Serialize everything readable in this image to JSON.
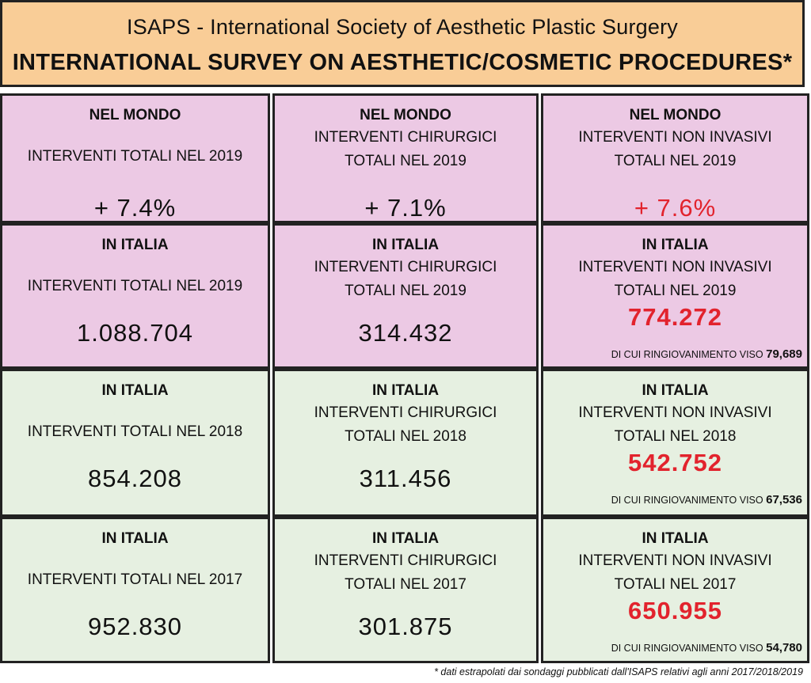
{
  "header": {
    "title": "ISAPS - International Society of Aesthetic Plastic Surgery",
    "subtitle": "INTERNATIONAL SURVEY ON AESTHETIC/COSMETIC PROCEDURES*"
  },
  "rows": [
    {
      "cells": [
        {
          "head": "NEL MONDO",
          "sub1": "INTERVENTI TOTALI NEL 2019",
          "value": "+ 7.4%"
        },
        {
          "head": "NEL MONDO",
          "sub1": "INTERVENTI CHIRURGICI",
          "sub2": "TOTALI NEL 2019",
          "value": "+ 7.1%"
        },
        {
          "head": "NEL MONDO",
          "sub1": "INTERVENTI NON INVASIVI",
          "sub2": "TOTALI NEL 2019",
          "value": "+ 7.6%"
        }
      ]
    },
    {
      "cells": [
        {
          "head": "IN ITALIA",
          "sub1": "INTERVENTI TOTALI NEL 2019",
          "value": "1.088.704"
        },
        {
          "head": "IN ITALIA",
          "sub1": "INTERVENTI CHIRURGICI",
          "sub2": "TOTALI NEL 2019",
          "value": "314.432"
        },
        {
          "head": "IN ITALIA",
          "sub1": "INTERVENTI NON INVASIVI",
          "sub2": "TOTALI NEL 2019",
          "value": "774.272",
          "note_label": "DI CUI RINGIOVANIMENTO VISO",
          "note_value": "79,689"
        }
      ]
    },
    {
      "cells": [
        {
          "head": "IN ITALIA",
          "sub1": "INTERVENTI TOTALI NEL 2018",
          "value": "854.208"
        },
        {
          "head": "IN ITALIA",
          "sub1": "INTERVENTI CHIRURGICI",
          "sub2": "TOTALI NEL 2018",
          "value": "311.456"
        },
        {
          "head": "IN ITALIA",
          "sub1": "INTERVENTI NON INVASIVI",
          "sub2": "TOTALI NEL 2018",
          "value": "542.752",
          "note_label": "DI CUI RINGIOVANIMENTO VISO",
          "note_value": "67,536"
        }
      ]
    },
    {
      "cells": [
        {
          "head": "IN ITALIA",
          "sub1": "INTERVENTI TOTALI NEL 2017",
          "value": "952.830"
        },
        {
          "head": "IN ITALIA",
          "sub1": "INTERVENTI CHIRURGICI",
          "sub2": "TOTALI NEL 2017",
          "value": "301.875"
        },
        {
          "head": "IN ITALIA",
          "sub1": "INTERVENTI NON INVASIVI",
          "sub2": "TOTALI NEL 2017",
          "value": "650.955",
          "note_label": "DI CUI RINGIOVANIMENTO VISO",
          "note_value": "54,780"
        }
      ]
    }
  ],
  "footer": "* dati estrapolati dai sondaggi pubblicati dall'ISAPS relativi agli anni 2017/2018/2019",
  "colors": {
    "header_bg": "#f9cd97",
    "pink_bg": "#ecc9e4",
    "green_bg": "#e6f0e1",
    "accent_red": "#e2232d"
  }
}
